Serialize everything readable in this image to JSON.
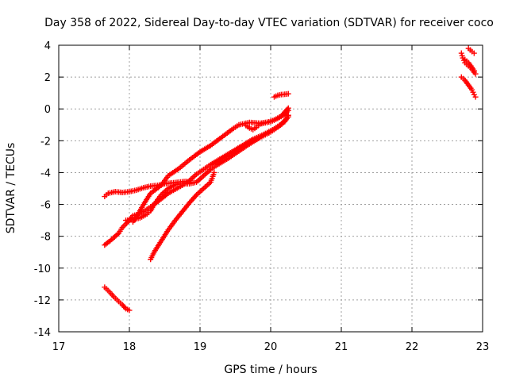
{
  "chart_data": {
    "type": "scatter",
    "title": "Day 358 of 2022, Sidereal Day-to-day VTEC variation (SDTVAR) for receiver coco",
    "xlabel": "GPS time / hours",
    "ylabel": "SDTVAR / TECUs",
    "xlim": [
      17,
      23
    ],
    "ylim": [
      -14,
      4
    ],
    "xticks": [
      "17",
      "18",
      "19",
      "20",
      "21",
      "22",
      "23"
    ],
    "yticks": [
      "4",
      "2",
      "0",
      "-2",
      "-4",
      "-6",
      "-8",
      "-10",
      "-12",
      "-14"
    ],
    "grid": true,
    "marker": "+",
    "color": "#ff0000",
    "series": [
      {
        "points": [
          [
            17.65,
            -11.2
          ],
          [
            17.72,
            -11.5
          ],
          [
            17.78,
            -11.8
          ],
          [
            17.85,
            -12.1
          ],
          [
            17.9,
            -12.3
          ],
          [
            17.95,
            -12.55
          ],
          [
            18.0,
            -12.65
          ]
        ]
      },
      {
        "points": [
          [
            17.65,
            -5.5
          ],
          [
            17.7,
            -5.3
          ],
          [
            17.8,
            -5.2
          ],
          [
            17.9,
            -5.25
          ],
          [
            18.0,
            -5.2
          ],
          [
            18.1,
            -5.1
          ],
          [
            18.2,
            -4.95
          ],
          [
            18.3,
            -4.85
          ],
          [
            18.4,
            -4.8
          ],
          [
            18.5,
            -4.7
          ],
          [
            18.6,
            -4.65
          ],
          [
            18.7,
            -4.6
          ],
          [
            18.8,
            -4.55
          ],
          [
            18.85,
            -4.6
          ]
        ]
      },
      {
        "points": [
          [
            17.65,
            -8.55
          ],
          [
            17.75,
            -8.2
          ],
          [
            17.85,
            -7.8
          ],
          [
            17.9,
            -7.45
          ],
          [
            18.0,
            -7.0
          ],
          [
            18.05,
            -6.7
          ],
          [
            18.15,
            -6.6
          ],
          [
            18.25,
            -6.3
          ],
          [
            18.35,
            -6.0
          ],
          [
            18.45,
            -5.65
          ],
          [
            18.55,
            -5.3
          ],
          [
            18.65,
            -5.05
          ],
          [
            18.75,
            -4.8
          ],
          [
            18.85,
            -4.5
          ],
          [
            18.95,
            -4.1
          ],
          [
            19.05,
            -3.8
          ],
          [
            19.15,
            -3.5
          ],
          [
            19.3,
            -3.1
          ],
          [
            19.45,
            -2.7
          ],
          [
            19.6,
            -2.3
          ],
          [
            19.75,
            -1.9
          ],
          [
            19.9,
            -1.6
          ],
          [
            20.05,
            -1.25
          ],
          [
            20.15,
            -0.95
          ],
          [
            20.25,
            -0.5
          ]
        ]
      },
      {
        "points": [
          [
            17.95,
            -7.0
          ],
          [
            18.05,
            -6.95
          ],
          [
            18.15,
            -6.85
          ],
          [
            18.25,
            -6.6
          ],
          [
            18.3,
            -6.4
          ],
          [
            18.35,
            -6.0
          ],
          [
            18.45,
            -5.4
          ],
          [
            18.55,
            -5.0
          ],
          [
            18.65,
            -4.75
          ],
          [
            18.75,
            -4.7
          ],
          [
            18.85,
            -4.7
          ],
          [
            18.95,
            -4.6
          ],
          [
            19.05,
            -4.2
          ],
          [
            19.15,
            -3.8
          ],
          [
            19.25,
            -3.5
          ],
          [
            19.4,
            -3.1
          ],
          [
            19.55,
            -2.65
          ],
          [
            19.7,
            -2.2
          ],
          [
            19.85,
            -1.8
          ],
          [
            20.0,
            -1.45
          ],
          [
            20.1,
            -1.15
          ],
          [
            20.2,
            -0.8
          ],
          [
            20.25,
            -0.4
          ]
        ]
      },
      {
        "points": [
          [
            18.05,
            -7.1
          ],
          [
            18.1,
            -6.8
          ],
          [
            18.2,
            -6.0
          ],
          [
            18.3,
            -5.3
          ],
          [
            18.45,
            -4.8
          ],
          [
            18.55,
            -4.2
          ],
          [
            18.7,
            -3.75
          ],
          [
            18.85,
            -3.2
          ],
          [
            19.0,
            -2.7
          ],
          [
            19.15,
            -2.3
          ],
          [
            19.3,
            -1.8
          ],
          [
            19.45,
            -1.3
          ],
          [
            19.55,
            -1.0
          ],
          [
            19.7,
            -0.85
          ],
          [
            19.85,
            -0.9
          ],
          [
            20.0,
            -0.8
          ],
          [
            20.1,
            -0.6
          ],
          [
            20.2,
            -0.35
          ],
          [
            20.25,
            -0.1
          ]
        ]
      },
      {
        "points": [
          [
            18.3,
            -9.45
          ],
          [
            18.35,
            -9.0
          ],
          [
            18.45,
            -8.3
          ],
          [
            18.55,
            -7.6
          ],
          [
            18.65,
            -7.0
          ],
          [
            18.75,
            -6.45
          ],
          [
            18.85,
            -5.9
          ],
          [
            18.95,
            -5.4
          ],
          [
            19.05,
            -5.0
          ],
          [
            19.15,
            -4.6
          ],
          [
            19.2,
            -4.0
          ]
        ]
      },
      {
        "points": [
          [
            19.65,
            -1.05
          ],
          [
            19.7,
            -1.2
          ],
          [
            19.75,
            -1.3
          ],
          [
            19.8,
            -1.15
          ],
          [
            19.85,
            -0.95
          ],
          [
            19.95,
            -0.85
          ],
          [
            20.05,
            -0.7
          ],
          [
            20.15,
            -0.45
          ],
          [
            20.2,
            -0.2
          ],
          [
            20.25,
            0.05
          ]
        ]
      },
      {
        "points": [
          [
            20.05,
            0.75
          ],
          [
            20.1,
            0.85
          ],
          [
            20.15,
            0.9
          ],
          [
            20.2,
            0.92
          ],
          [
            20.25,
            0.95
          ]
        ]
      },
      {
        "points": [
          [
            22.7,
            3.5
          ],
          [
            22.72,
            3.2
          ],
          [
            22.75,
            2.9
          ],
          [
            22.8,
            2.7
          ],
          [
            22.85,
            2.5
          ],
          [
            22.88,
            2.3
          ],
          [
            22.9,
            2.2
          ]
        ]
      },
      {
        "points": [
          [
            22.7,
            2.0
          ],
          [
            22.75,
            1.8
          ],
          [
            22.8,
            1.5
          ],
          [
            22.85,
            1.2
          ],
          [
            22.88,
            0.9
          ],
          [
            22.9,
            0.75
          ]
        ]
      },
      {
        "points": [
          [
            22.8,
            3.8
          ],
          [
            22.85,
            3.6
          ],
          [
            22.88,
            3.5
          ]
        ]
      },
      {
        "points": [
          [
            22.75,
            3.1
          ],
          [
            22.8,
            2.9
          ],
          [
            22.85,
            2.6
          ],
          [
            22.88,
            2.4
          ]
        ]
      }
    ]
  }
}
